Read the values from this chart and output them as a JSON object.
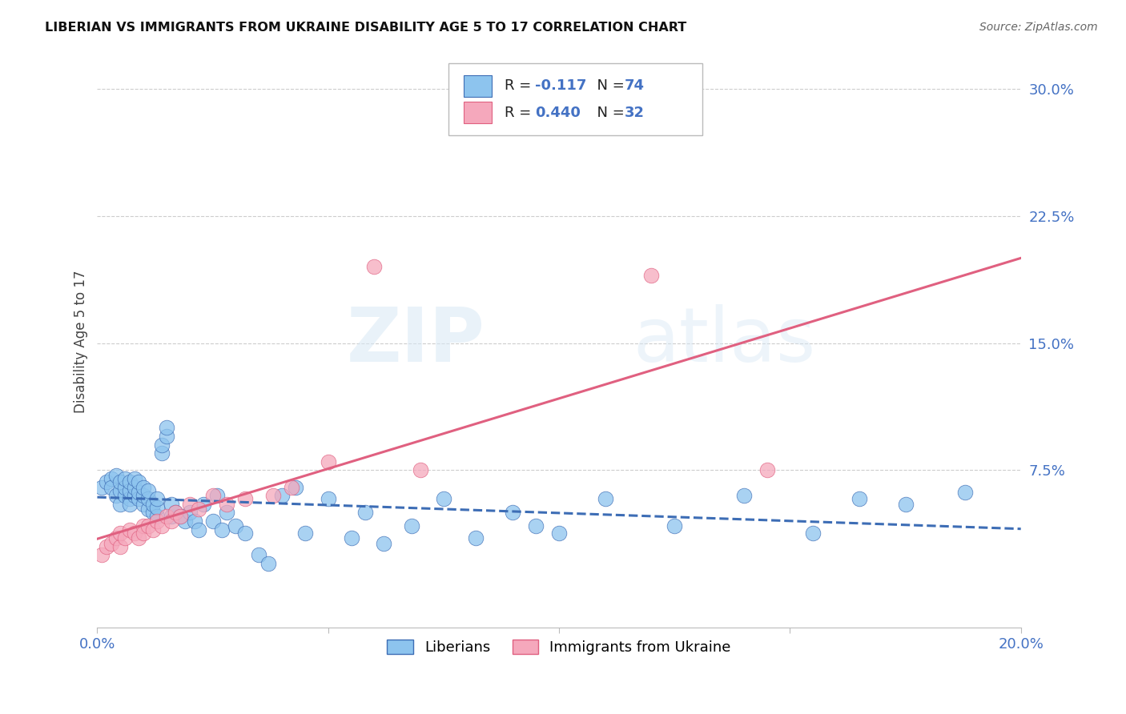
{
  "title": "LIBERIAN VS IMMIGRANTS FROM UKRAINE DISABILITY AGE 5 TO 17 CORRELATION CHART",
  "source": "Source: ZipAtlas.com",
  "ylabel": "Disability Age 5 to 17",
  "R_liberian": -0.117,
  "N_liberian": 74,
  "R_ukraine": 0.44,
  "N_ukraine": 32,
  "xlim": [
    0.0,
    0.2
  ],
  "ylim": [
    -0.018,
    0.32
  ],
  "yticks": [
    0.075,
    0.15,
    0.225,
    0.3
  ],
  "ytick_labels": [
    "7.5%",
    "15.0%",
    "22.5%",
    "30.0%"
  ],
  "xticks": [
    0.0,
    0.05,
    0.1,
    0.15,
    0.2
  ],
  "xtick_labels": [
    "0.0%",
    "",
    "",
    "",
    "20.0%"
  ],
  "color_liberian": "#8DC4EE",
  "color_ukraine": "#F5A8BC",
  "line_color_liberian": "#3D6DB5",
  "line_color_ukraine": "#E06080",
  "background": "#FFFFFF",
  "watermark_zip": "ZIP",
  "watermark_atlas": "atlas",
  "legend_bottom": [
    "Liberians",
    "Immigrants from Ukraine"
  ],
  "liberian_x": [
    0.001,
    0.002,
    0.003,
    0.003,
    0.004,
    0.004,
    0.005,
    0.005,
    0.005,
    0.006,
    0.006,
    0.006,
    0.007,
    0.007,
    0.007,
    0.007,
    0.008,
    0.008,
    0.008,
    0.009,
    0.009,
    0.009,
    0.01,
    0.01,
    0.01,
    0.011,
    0.011,
    0.011,
    0.012,
    0.012,
    0.013,
    0.013,
    0.013,
    0.014,
    0.014,
    0.015,
    0.015,
    0.016,
    0.016,
    0.017,
    0.018,
    0.019,
    0.02,
    0.021,
    0.022,
    0.023,
    0.025,
    0.026,
    0.027,
    0.028,
    0.03,
    0.032,
    0.035,
    0.037,
    0.04,
    0.043,
    0.045,
    0.05,
    0.055,
    0.058,
    0.062,
    0.068,
    0.075,
    0.082,
    0.09,
    0.095,
    0.1,
    0.11,
    0.125,
    0.14,
    0.155,
    0.165,
    0.175,
    0.188
  ],
  "liberian_y": [
    0.065,
    0.068,
    0.07,
    0.065,
    0.06,
    0.072,
    0.063,
    0.068,
    0.055,
    0.06,
    0.065,
    0.07,
    0.058,
    0.063,
    0.068,
    0.055,
    0.06,
    0.065,
    0.07,
    0.058,
    0.062,
    0.068,
    0.055,
    0.06,
    0.065,
    0.052,
    0.058,
    0.063,
    0.05,
    0.055,
    0.048,
    0.053,
    0.058,
    0.085,
    0.09,
    0.095,
    0.1,
    0.048,
    0.055,
    0.05,
    0.048,
    0.045,
    0.05,
    0.045,
    0.04,
    0.055,
    0.045,
    0.06,
    0.04,
    0.05,
    0.042,
    0.038,
    0.025,
    0.02,
    0.06,
    0.065,
    0.038,
    0.058,
    0.035,
    0.05,
    0.032,
    0.042,
    0.058,
    0.035,
    0.05,
    0.042,
    0.038,
    0.058,
    0.042,
    0.06,
    0.038,
    0.058,
    0.055,
    0.062
  ],
  "ukraine_x": [
    0.001,
    0.002,
    0.003,
    0.004,
    0.005,
    0.005,
    0.006,
    0.007,
    0.008,
    0.009,
    0.01,
    0.01,
    0.011,
    0.012,
    0.013,
    0.014,
    0.015,
    0.016,
    0.017,
    0.018,
    0.02,
    0.022,
    0.025,
    0.028,
    0.032,
    0.038,
    0.042,
    0.05,
    0.06,
    0.07,
    0.12,
    0.145
  ],
  "ukraine_y": [
    0.025,
    0.03,
    0.032,
    0.035,
    0.03,
    0.038,
    0.035,
    0.04,
    0.038,
    0.035,
    0.042,
    0.038,
    0.042,
    0.04,
    0.045,
    0.042,
    0.048,
    0.045,
    0.05,
    0.048,
    0.055,
    0.052,
    0.06,
    0.055,
    0.058,
    0.06,
    0.065,
    0.08,
    0.195,
    0.075,
    0.19,
    0.075
  ]
}
